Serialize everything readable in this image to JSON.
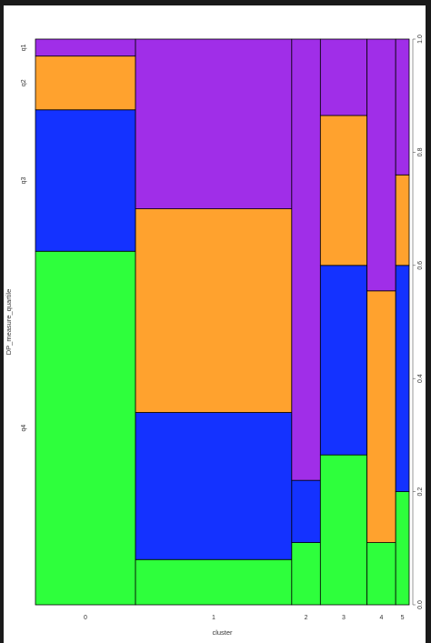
{
  "chart_data": {
    "type": "mosaic",
    "xlabel": "cluster",
    "ylabel": "DP_measure_quartile",
    "categories": [
      "0",
      "1",
      "2",
      "3",
      "4",
      "5"
    ],
    "column_widths": [
      0.178,
      0.278,
      0.051,
      0.083,
      0.051,
      0.024
    ],
    "series": [
      {
        "name": "q4",
        "color": "#2eff3c",
        "values": [
          0.625,
          0.08,
          0.11,
          0.265,
          0.11,
          0.2
        ]
      },
      {
        "name": "q3",
        "color": "#1432ff",
        "values": [
          0.25,
          0.26,
          0.11,
          0.335,
          0.0,
          0.4
        ]
      },
      {
        "name": "q2",
        "color": "#ffa22e",
        "values": [
          0.095,
          0.36,
          0.0,
          0.265,
          0.445,
          0.16
        ]
      },
      {
        "name": "q1",
        "color": "#a02ee8",
        "values": [
          0.03,
          0.3,
          0.78,
          0.135,
          0.445,
          0.24
        ]
      }
    ],
    "y_tick_labels": [
      "0.0",
      "0.2",
      "0.4",
      "0.6",
      "0.8",
      "1.0"
    ],
    "ylim": [
      0,
      1
    ]
  }
}
